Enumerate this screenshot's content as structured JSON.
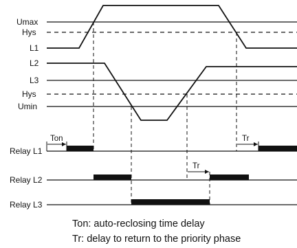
{
  "labels": {
    "umax": "Umax",
    "hys_top": "Hys",
    "l1": "L1",
    "l2": "L2",
    "l3": "L3",
    "hys_bottom": "Hys",
    "umin": "Umin",
    "relay_l1": "Relay L1",
    "relay_l2": "Relay L2",
    "relay_l3": "Relay L3"
  },
  "intervals": {
    "ton": "Ton",
    "tr_relay_l1": "Tr",
    "tr_relay_l2": "Tr"
  },
  "notes": {
    "ton": "Ton: auto-reclosing time delay",
    "tr": "Tr: delay to return to the priority phase"
  }
}
